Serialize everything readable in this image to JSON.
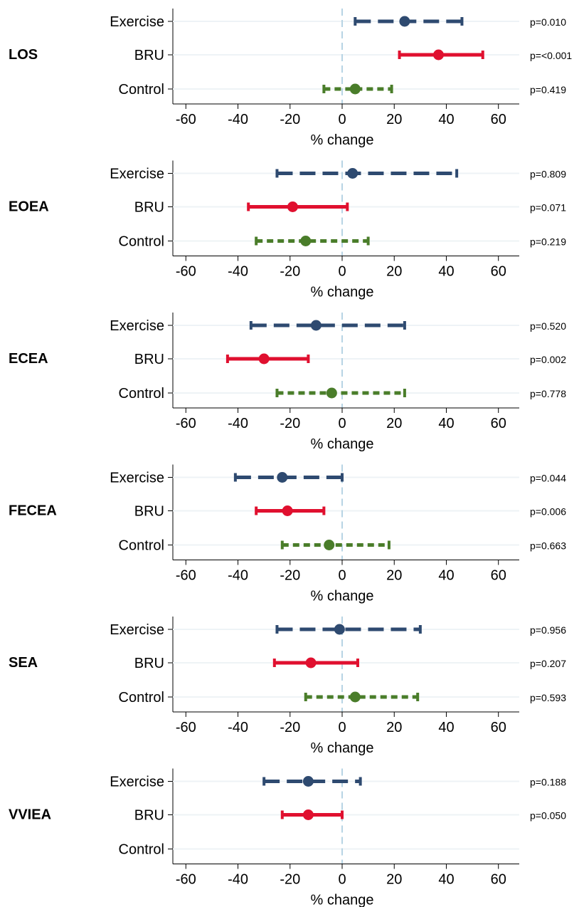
{
  "chart_data": {
    "type": "forest",
    "xlabel": "% change",
    "xlim": [
      -65,
      68
    ],
    "xticks": [
      -60,
      -40,
      -20,
      0,
      20,
      40,
      60
    ],
    "reference_line": 0,
    "groups": [
      "Exercise",
      "BRU",
      "Control"
    ],
    "series_styles": {
      "Exercise": {
        "color": "#2e4a70",
        "dash": "long-dash"
      },
      "BRU": {
        "color": "#e0102f",
        "dash": "solid"
      },
      "Control": {
        "color": "#4a7d2a",
        "dash": "short-dash"
      }
    },
    "panels": [
      {
        "label": "LOS",
        "rows": [
          {
            "group": "Exercise",
            "estimate": 24,
            "lower": 5,
            "upper": 46,
            "p": "p=0.010"
          },
          {
            "group": "BRU",
            "estimate": 37,
            "lower": 22,
            "upper": 54,
            "p": "p=<0.001"
          },
          {
            "group": "Control",
            "estimate": 5,
            "lower": -7,
            "upper": 19,
            "p": "p=0.419"
          }
        ]
      },
      {
        "label": "EOEA",
        "rows": [
          {
            "group": "Exercise",
            "estimate": 4,
            "lower": -25,
            "upper": 44,
            "p": "p=0.809"
          },
          {
            "group": "BRU",
            "estimate": -19,
            "lower": -36,
            "upper": 2,
            "p": "p=0.071"
          },
          {
            "group": "Control",
            "estimate": -14,
            "lower": -33,
            "upper": 10,
            "p": "p=0.219"
          }
        ]
      },
      {
        "label": "ECEA",
        "rows": [
          {
            "group": "Exercise",
            "estimate": -10,
            "lower": -35,
            "upper": 24,
            "p": "p=0.520"
          },
          {
            "group": "BRU",
            "estimate": -30,
            "lower": -44,
            "upper": -13,
            "p": "p=0.002"
          },
          {
            "group": "Control",
            "estimate": -4,
            "lower": -25,
            "upper": 24,
            "p": "p=0.778"
          }
        ]
      },
      {
        "label": "FECEA",
        "rows": [
          {
            "group": "Exercise",
            "estimate": -23,
            "lower": -41,
            "upper": 0,
            "p": "p=0.044"
          },
          {
            "group": "BRU",
            "estimate": -21,
            "lower": -33,
            "upper": -7,
            "p": "p=0.006"
          },
          {
            "group": "Control",
            "estimate": -5,
            "lower": -23,
            "upper": 18,
            "p": "p=0.663"
          }
        ]
      },
      {
        "label": "SEA",
        "rows": [
          {
            "group": "Exercise",
            "estimate": -1,
            "lower": -25,
            "upper": 30,
            "p": "p=0.956"
          },
          {
            "group": "BRU",
            "estimate": -12,
            "lower": -26,
            "upper": 6,
            "p": "p=0.207"
          },
          {
            "group": "Control",
            "estimate": 5,
            "lower": -14,
            "upper": 29,
            "p": "p=0.593"
          }
        ]
      },
      {
        "label": "VVIEA",
        "rows": [
          {
            "group": "Exercise",
            "estimate": -13,
            "lower": -30,
            "upper": 7,
            "p": "p=0.188"
          },
          {
            "group": "BRU",
            "estimate": -13,
            "lower": -23,
            "upper": 0,
            "p": "p=0.050"
          },
          {
            "group": "Control",
            "estimate": null,
            "lower": null,
            "upper": null,
            "p": ""
          }
        ]
      }
    ]
  }
}
